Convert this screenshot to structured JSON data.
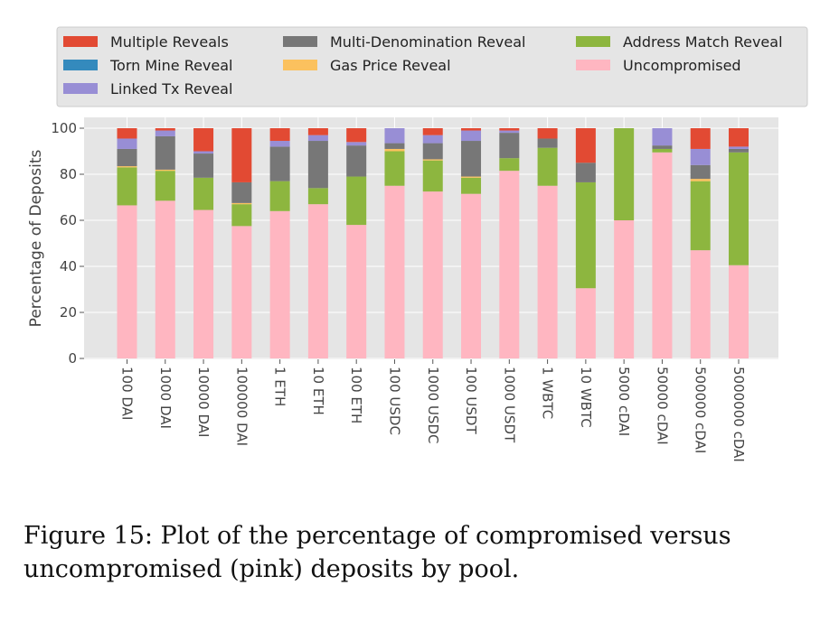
{
  "caption": "Figure 15: Plot of the percentage of compromised ver­sus uncompromised (pink) deposits by pool.",
  "chart_data": {
    "type": "bar",
    "stacked": true,
    "ylabel": "Percentage of Deposits",
    "xlabel": "",
    "ylim": [
      0,
      100
    ],
    "yticks": [
      0,
      20,
      40,
      60,
      80,
      100
    ],
    "grid": true,
    "legend_position": "top",
    "categories": [
      "100 DAI",
      "1000 DAI",
      "10000 DAI",
      "100000 DAI",
      "1 ETH",
      "10 ETH",
      "100 ETH",
      "100 USDC",
      "1000 USDC",
      "100 USDT",
      "1000 USDT",
      "1 WBTC",
      "10 WBTC",
      "5000 cDAI",
      "50000 cDAI",
      "500000 cDAI",
      "5000000 cDAI"
    ],
    "series": [
      {
        "name": "Uncompromised",
        "color": "#ffb6c1",
        "values": [
          66.5,
          68.5,
          64.5,
          57.5,
          64,
          67,
          58,
          75,
          72.5,
          71.5,
          81.5,
          75,
          30.5,
          60,
          89.5,
          47,
          40.5
        ]
      },
      {
        "name": "Address Match Reveal",
        "color": "#8db63f",
        "values": [
          16.5,
          13,
          14,
          9.5,
          13,
          7,
          21,
          15,
          13.5,
          7,
          5.5,
          16.5,
          46,
          40,
          1.5,
          30,
          49
        ]
      },
      {
        "name": "Gas Price Reveal",
        "color": "#fbc15e",
        "values": [
          0.5,
          0.5,
          0,
          0.5,
          0,
          0,
          0,
          1,
          0.5,
          0.5,
          0,
          0,
          0,
          0,
          0,
          1,
          0
        ]
      },
      {
        "name": "Multi-Denomination Reveal",
        "color": "#777777",
        "values": [
          7.5,
          14.5,
          10.5,
          9,
          15,
          20.5,
          13.5,
          2.5,
          7,
          15.5,
          11,
          4,
          8.5,
          0,
          1.5,
          6,
          1.5
        ]
      },
      {
        "name": "Torn Mine Reveal",
        "color": "#348abd",
        "values": [
          0,
          0,
          0,
          0,
          0,
          0,
          0,
          0,
          0,
          0,
          0,
          0,
          0,
          0,
          0,
          0,
          0
        ]
      },
      {
        "name": "Linked Tx Reveal",
        "color": "#988ed5",
        "values": [
          4.5,
          2.5,
          1,
          0,
          2.5,
          2.5,
          1.5,
          6.5,
          3.5,
          4.5,
          1,
          0,
          0,
          0,
          7.5,
          7,
          1
        ]
      },
      {
        "name": "Multiple Reveals",
        "color": "#e24a33",
        "values": [
          4.5,
          1,
          10,
          23.5,
          5.5,
          3,
          6,
          0,
          3,
          1,
          1,
          4.5,
          15,
          0,
          0,
          9,
          8
        ]
      }
    ],
    "legend_order": [
      "Multiple Reveals",
      "Multi-Denomination Reveal",
      "Address Match Reveal",
      "Torn Mine Reveal",
      "Gas Price Reveal",
      "Uncompromised",
      "Linked Tx Reveal"
    ]
  }
}
